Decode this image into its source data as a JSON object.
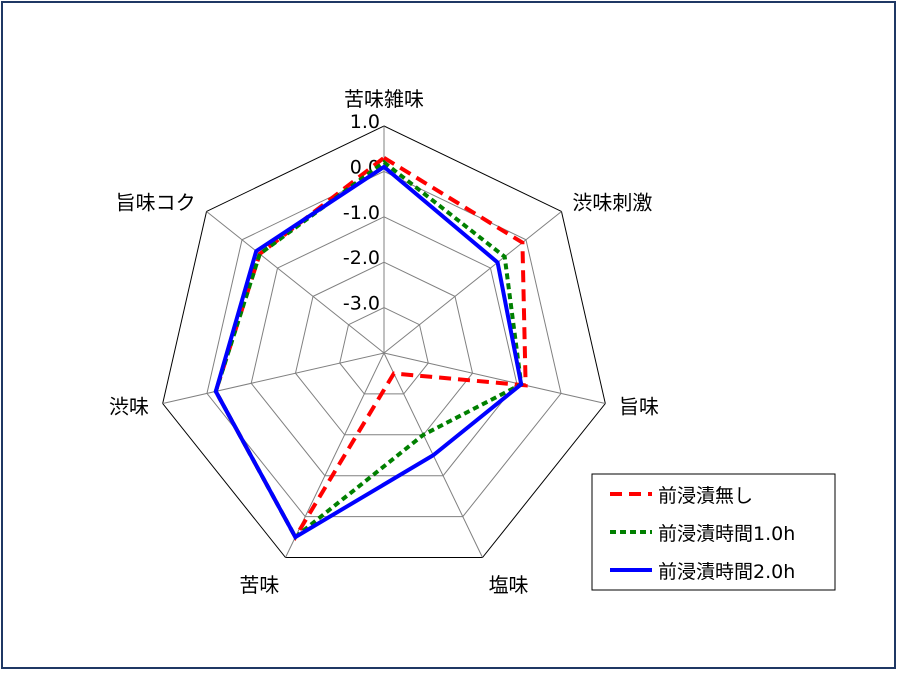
{
  "chart_data": {
    "type": "radar",
    "categories": [
      "苦味雑味",
      "渋味刺激",
      "旨味",
      "塩味",
      "苦味",
      "渋味",
      "旨味コク"
    ],
    "rlim": [
      -4.0,
      1.0
    ],
    "ticks": [
      -3.0,
      -2.0,
      -1.0,
      0.0,
      1.0
    ],
    "tick_labels": [
      "-3.0",
      "-2.0",
      "-1.0",
      "0.0",
      "1.0"
    ],
    "grid_colors": {
      "outer": "#000000",
      "inner": "#808080"
    },
    "legend_position": "bottom-right",
    "series": [
      {
        "name": "前浸漬無し",
        "color": "#ff0000",
        "style": "dashed",
        "values": [
          0.3,
          -0.1,
          -0.8,
          -3.5,
          0.5,
          -0.2,
          -0.5
        ]
      },
      {
        "name": "前浸漬時間1.0h",
        "color": "#008000",
        "style": "dotted",
        "values": [
          0.2,
          -0.6,
          -0.9,
          -2.0,
          0.5,
          -0.2,
          -0.5
        ]
      },
      {
        "name": "前浸漬時間2.0h",
        "color": "#0000ff",
        "style": "solid",
        "values": [
          0.1,
          -0.8,
          -0.9,
          -1.5,
          0.5,
          -0.2,
          -0.4
        ]
      }
    ]
  }
}
